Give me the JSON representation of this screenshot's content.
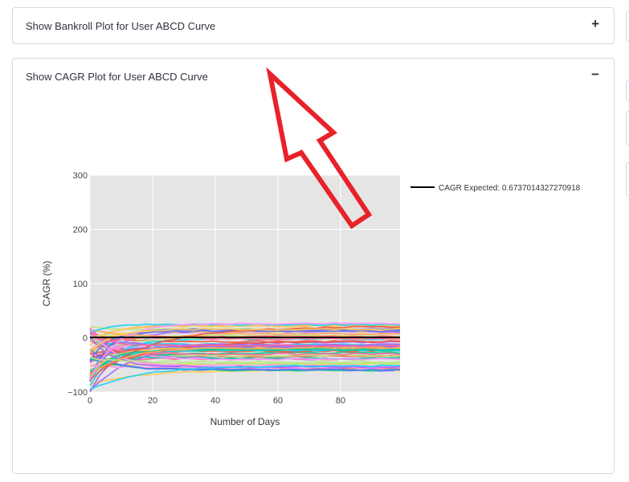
{
  "expanders": [
    {
      "title": "Show Bankroll Plot for User ABCD Curve",
      "toggle": "+",
      "expanded": false
    },
    {
      "title": "Show CAGR Plot for User ABCD Curve",
      "toggle": "−",
      "expanded": true
    }
  ],
  "chart_data": {
    "type": "line",
    "title": "",
    "xlabel": "Number of Days",
    "ylabel": "CAGR (%)",
    "xlim": [
      0,
      99
    ],
    "ylim": [
      -100,
      300
    ],
    "xticks": [
      0,
      20,
      40,
      60,
      80
    ],
    "xtick_labels": [
      "0",
      "20",
      "40",
      "60",
      "80"
    ],
    "yticks": [
      -100,
      0,
      100,
      200,
      300
    ],
    "ytick_labels": [
      "−100",
      "0",
      "100",
      "200",
      "300"
    ],
    "grid": true,
    "plot_bgcolor": "#e5e5e5",
    "legend_position": "top-right",
    "simulation_series_count": 60,
    "simulation_colors": [
      "#636efa",
      "#ef553b",
      "#00cc96",
      "#ab63fa",
      "#ffa15a",
      "#19d3f3",
      "#ff6692",
      "#b6e880",
      "#ff97ff",
      "#fecb52"
    ],
    "series": [
      {
        "name": "CAGR Expected: 0.6737014327270918",
        "color": "#000000",
        "x": [
          0,
          99
        ],
        "y": [
          0.6737,
          0.6737
        ]
      }
    ]
  },
  "annotation": {
    "type": "arrow",
    "color": "#e8222a"
  }
}
